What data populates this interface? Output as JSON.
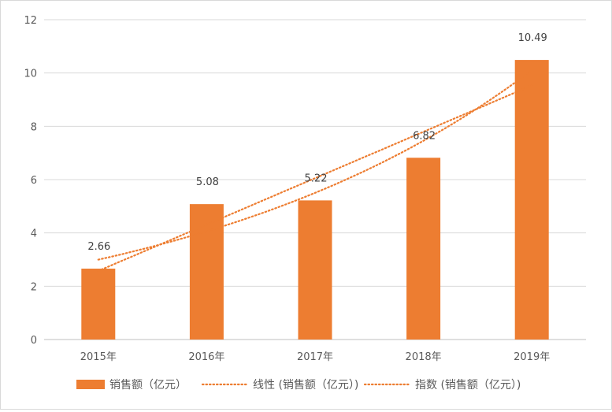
{
  "chart_data": {
    "type": "bar",
    "categories": [
      "2015年",
      "2016年",
      "2017年",
      "2018年",
      "2019年"
    ],
    "series": [
      {
        "name": "销售额（亿元）",
        "values": [
          2.66,
          5.08,
          5.22,
          6.82,
          10.49
        ],
        "color": "#ED7D31"
      }
    ],
    "trendlines": [
      {
        "name": "线性 (销售额（亿元）)",
        "kind": "linear",
        "color": "#ED7D31",
        "style": "dotted"
      },
      {
        "name": "指数 (销售额（亿元）)",
        "kind": "exponential",
        "color": "#ED7D31",
        "style": "dotted"
      }
    ],
    "data_labels": [
      "2.66",
      "5.08",
      "5.22",
      "6.82",
      "10.49"
    ],
    "y_ticks": [
      "0",
      "2",
      "4",
      "6",
      "8",
      "10",
      "12"
    ],
    "ylim": [
      0,
      12
    ],
    "grid": true,
    "legend_position": "bottom",
    "title": "",
    "xlabel": "",
    "ylabel": ""
  }
}
